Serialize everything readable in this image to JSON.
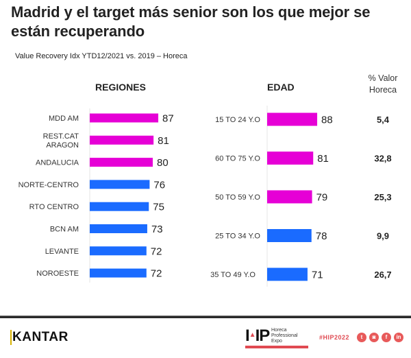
{
  "header": {
    "title": "Madrid y el target más senior son los que mejor se están recuperando",
    "subtitle": "Value Recovery Idx YTD12/2021 vs. 2019 – Horeca"
  },
  "chart_data": [
    {
      "type": "bar",
      "orientation": "horizontal",
      "title": "REGIONES",
      "categories": [
        "MDD AM",
        "REST.CAT ARAGON",
        "ANDALUCIA",
        "NORTE-CENTRO",
        "RTO CENTRO",
        "BCN AM",
        "LEVANTE",
        "NOROESTE"
      ],
      "values": [
        87,
        81,
        80,
        76,
        75,
        73,
        72,
        72
      ],
      "colors": [
        "#e600d6",
        "#e600d6",
        "#e600d6",
        "#1a6bff",
        "#1a6bff",
        "#1a6bff",
        "#1a6bff",
        "#1a6bff"
      ],
      "xlabel": "",
      "ylabel": "",
      "xlim": [
        0,
        100
      ],
      "grid": false,
      "data_labels": true
    },
    {
      "type": "bar",
      "orientation": "horizontal",
      "title": "EDAD",
      "categories": [
        "15 TO 24 Y.O",
        "60 TO 75 Y.O",
        "50 TO 59 Y.O",
        "25 TO 34 Y.O",
        "35 TO 49 Y.O"
      ],
      "values": [
        88,
        81,
        79,
        78,
        71
      ],
      "colors": [
        "#e600d6",
        "#e600d6",
        "#e600d6",
        "#1a6bff",
        "#1a6bff"
      ],
      "extra_column": {
        "header": "% Valor Horeca",
        "values": [
          "5,4",
          "32,8",
          "25,3",
          "9,9",
          "26,7"
        ]
      },
      "xlabel": "",
      "ylabel": "",
      "xlim": [
        0,
        100
      ],
      "grid": false,
      "data_labels": true
    }
  ],
  "regiones_labels": [
    [
      "MDD AM"
    ],
    [
      "REST.CAT",
      "ARAGON"
    ],
    [
      "ANDALUCIA"
    ],
    [
      "NORTE-CENTRO"
    ],
    [
      "RTO CENTRO"
    ],
    [
      "BCN AM"
    ],
    [
      "LEVANTE"
    ],
    [
      "NOROESTE"
    ]
  ],
  "pct_header_lines": [
    "% Valor",
    "Horeca"
  ],
  "colors": {
    "highlight": "#e600d6",
    "base": "#1a6bff",
    "brand_red": "#e04a52"
  },
  "footer": {
    "kantar_logo": "KANTAR",
    "hip_logo": "HIP",
    "hip_words": [
      "Horeca",
      "Professional",
      "Expo"
    ],
    "hashtag": "#HIP2022",
    "social_icons": [
      "twitter-icon",
      "instagram-icon",
      "facebook-icon",
      "linkedin-icon"
    ],
    "social_glyphs": [
      "t",
      "◙",
      "f",
      "in"
    ]
  }
}
